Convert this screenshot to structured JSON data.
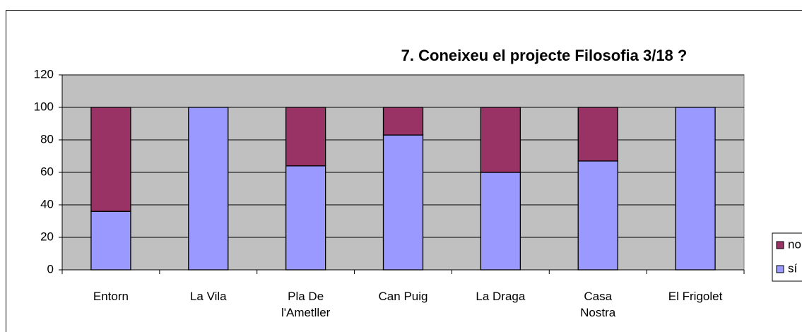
{
  "chart_data": {
    "type": "stacked_bar",
    "title": "7. Coneixeu el projecte Filosofia 3/18 ?",
    "categories": [
      "Entorn",
      "La Vila",
      "Pla De l'Ametller",
      "Can Puig",
      "La Draga",
      "Casa Nostra",
      "El Frigolet"
    ],
    "series": [
      {
        "name": "sí",
        "color": "#9999ff",
        "values": [
          36,
          100,
          64,
          83,
          60,
          67,
          100
        ]
      },
      {
        "name": "no",
        "color": "#993366",
        "values": [
          64,
          0,
          36,
          17,
          40,
          33,
          0
        ]
      }
    ],
    "ylim": [
      0,
      120
    ],
    "yticks": [
      0,
      20,
      40,
      60,
      80,
      100,
      120
    ],
    "grid": true,
    "legend": "right"
  }
}
